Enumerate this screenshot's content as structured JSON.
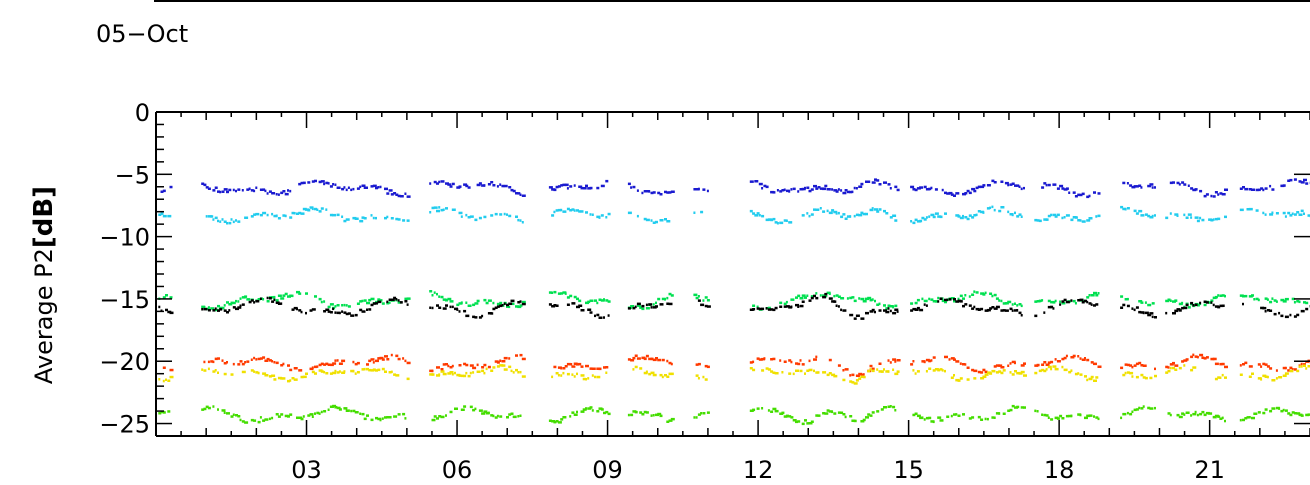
{
  "header": {
    "date_label": "05−Oct"
  },
  "chart_data": {
    "type": "scatter",
    "title": "",
    "xlabel": "",
    "ylabel_prefix": "Average  P2",
    "ylabel_unit": "[dB]",
    "xlim": [
      0,
      23
    ],
    "ylim": [
      -26,
      0
    ],
    "x_ticks": [
      3,
      6,
      9,
      12,
      15,
      18,
      21
    ],
    "x_tick_labels": [
      "03",
      "06",
      "09",
      "12",
      "15",
      "18",
      "21"
    ],
    "y_ticks": [
      0,
      -5,
      -10,
      -15,
      -20,
      -25
    ],
    "y_tick_labels": [
      "0",
      "−5",
      "−10",
      "−15",
      "−20",
      "−25"
    ],
    "grid": false,
    "data_gaps": [
      [
        5.0,
        5.4
      ],
      [
        7.3,
        7.8
      ],
      [
        9.0,
        9.4
      ],
      [
        10.3,
        10.7
      ],
      [
        11.0,
        11.8
      ],
      [
        14.8,
        15.0
      ],
      [
        17.3,
        17.5
      ],
      [
        18.8,
        19.2
      ],
      [
        19.9,
        20.1
      ],
      [
        21.3,
        21.6
      ]
    ],
    "series": [
      {
        "color": "#1a1ad0",
        "base": -6.0,
        "wave_amp": 0.35,
        "seed": 11
      },
      {
        "color": "#22ccee",
        "base": -8.2,
        "wave_amp": 0.3,
        "seed": 23
      },
      {
        "color": "#00e050",
        "base": -15.0,
        "wave_amp": 0.4,
        "seed": 37
      },
      {
        "color": "#000000",
        "base": -15.6,
        "wave_amp": 0.45,
        "seed": 41
      },
      {
        "color": "#ff3a00",
        "base": -20.1,
        "wave_amp": 0.35,
        "seed": 53
      },
      {
        "color": "#f0e000",
        "base": -20.9,
        "wave_amp": 0.3,
        "seed": 67
      },
      {
        "color": "#44dd00",
        "base": -24.2,
        "wave_amp": 0.35,
        "seed": 71
      }
    ]
  }
}
